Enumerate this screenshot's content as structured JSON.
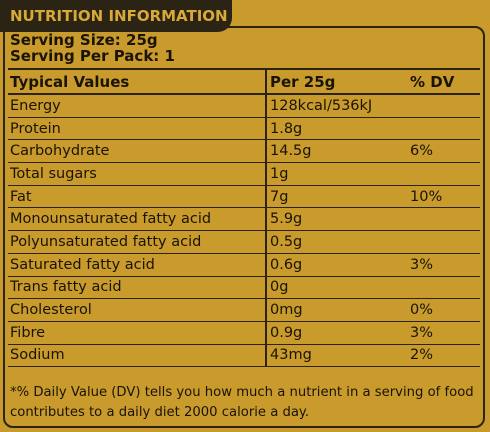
{
  "header": {
    "title": "NUTRITION INFORMATION"
  },
  "serving": {
    "size": "Serving Size: 25g",
    "per_pack": "Serving Per Pack: 1"
  },
  "table": {
    "headers": [
      "Typical Values",
      "Per 25g",
      "% DV"
    ],
    "rows": [
      [
        "Energy",
        "128kcal/536kJ",
        ""
      ],
      [
        "Protein",
        "1.8g",
        ""
      ],
      [
        "Carbohydrate",
        "14.5g",
        "6%"
      ],
      [
        "Total sugars",
        "1g",
        ""
      ],
      [
        "Fat",
        "7g",
        "10%"
      ],
      [
        "Monounsaturated fatty acid",
        "5.9g",
        ""
      ],
      [
        "Polyunsaturated fatty acid",
        "0.5g",
        ""
      ],
      [
        "Saturated fatty acid",
        "0.6g",
        "3%"
      ],
      [
        "Trans fatty acid",
        "0g",
        ""
      ],
      [
        "Cholesterol",
        "0mg",
        "0%"
      ],
      [
        "Fibre",
        "0.9g",
        "3%"
      ],
      [
        "Sodium",
        "43mg",
        "2%"
      ]
    ]
  },
  "footnote": "*% Daily Value (DV) tells you how much a nutrient in a serving of food contributes to a daily diet 2000 calorie a day.",
  "colors": {
    "background": "#c99a2c",
    "dark": "#2b2415",
    "header_text": "#d8a838"
  }
}
